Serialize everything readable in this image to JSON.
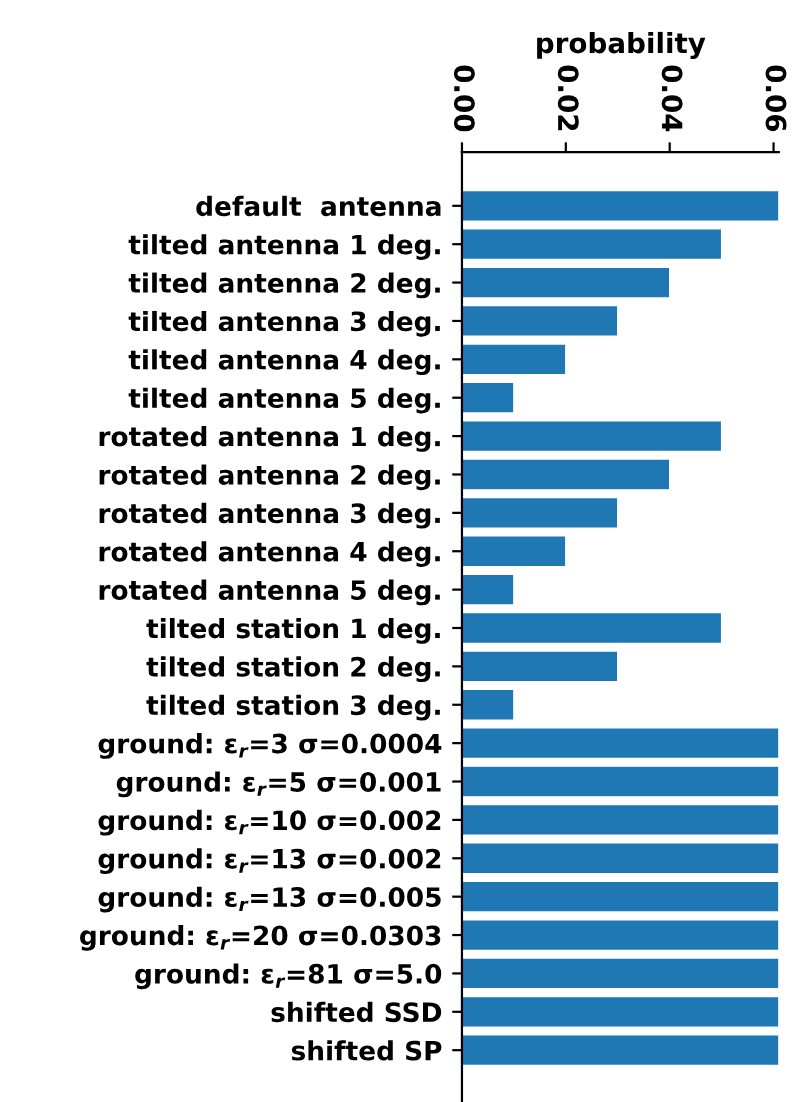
{
  "chart_data": {
    "type": "bar",
    "orientation": "horizontal",
    "xlabel": "probability",
    "categories": [
      "default  antenna",
      "tilted antenna 1 deg.",
      "tilted antenna 2 deg.",
      "tilted antenna 3 deg.",
      "tilted antenna 4 deg.",
      "tilted antenna 5 deg.",
      "rotated antenna 1 deg.",
      "rotated antenna 2 deg.",
      "rotated antenna 3 deg.",
      "rotated antenna 4 deg.",
      "rotated antenna 5 deg.",
      "tilted station 1 deg.",
      "tilted station 2 deg.",
      "tilted station 3 deg.",
      "ground: ε$_{r}$=3 σ=0.0004",
      "ground: ε$_{r}$=5 σ=0.001",
      "ground: ε$_{r}$=10 σ=0.002",
      "ground: ε$_{r}$=13 σ=0.002",
      "ground: ε$_{r}$=13 σ=0.005",
      "ground: ε$_{r}$=20 σ=0.0303",
      "ground: ε$_{r}$=81 σ=5.0",
      "shifted SSD",
      "shifted SP"
    ],
    "values": [
      0.061,
      0.05,
      0.04,
      0.03,
      0.02,
      0.01,
      0.05,
      0.04,
      0.03,
      0.02,
      0.01,
      0.05,
      0.03,
      0.01,
      0.061,
      0.061,
      0.061,
      0.061,
      0.061,
      0.061,
      0.061,
      0.061,
      0.061
    ],
    "color": "#1f77b4",
    "xlim": [
      0,
      0.061
    ],
    "xticks": [
      {
        "value": 0,
        "label": "0.00"
      },
      {
        "value": 0.02,
        "label": "0.02"
      },
      {
        "value": 0.04,
        "label": "0.04"
      },
      {
        "value": 0.06,
        "label": "0.06"
      }
    ],
    "grid": false
  }
}
